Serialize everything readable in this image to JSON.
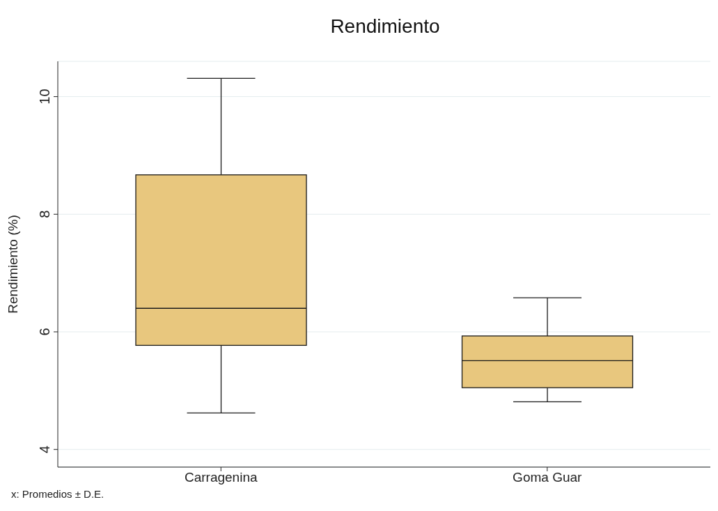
{
  "chart_data": {
    "type": "box",
    "title": "Rendimiento",
    "ylabel": "Rendimiento (%)",
    "categories": [
      "Carragenina",
      "Goma Guar"
    ],
    "boxes": [
      {
        "low": 4.62,
        "q1": 5.77,
        "median": 6.4,
        "q3": 8.67,
        "high": 10.31
      },
      {
        "low": 4.81,
        "q1": 5.05,
        "median": 5.51,
        "q3": 5.93,
        "high": 6.58
      }
    ],
    "color": "#e8c77e",
    "ylim": [
      3.7,
      10.6
    ],
    "yticks": [
      4,
      6,
      8,
      10
    ],
    "grid": "y",
    "annotations": [
      "x: Promedios ± D.E."
    ]
  }
}
